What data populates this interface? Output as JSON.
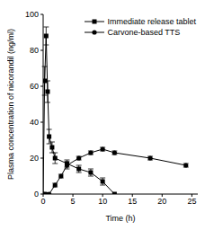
{
  "chart_data": {
    "type": "line",
    "x_label": "Time (h)",
    "y_label": "Plasma concentration of nicorandil (ng/ml)",
    "xlim": [
      0,
      26
    ],
    "xticks": [
      0,
      5,
      10,
      15,
      20,
      25
    ],
    "ylim": [
      0,
      100
    ],
    "yticks": [
      0,
      20,
      40,
      60,
      80,
      100
    ],
    "legend": "upper right",
    "grid": false,
    "series": [
      {
        "name": "Immediate release tablet",
        "color": "#000000",
        "marker": "square",
        "line_style": "solid",
        "x": [
          0,
          0.25,
          0.5,
          0.75,
          1,
          1.5,
          2,
          4,
          6,
          8,
          10,
          12
        ],
        "values": [
          0,
          63,
          88,
          57,
          32,
          26,
          20,
          17,
          14,
          12,
          7,
          0
        ],
        "errors": [
          0,
          8,
          5,
          6,
          4,
          3,
          3,
          2,
          2,
          2,
          2,
          0
        ]
      },
      {
        "name": "Carvone-based TTS",
        "color": "#000000",
        "marker": "circle",
        "line_style": "solid",
        "x": [
          0,
          0.5,
          1,
          2,
          3,
          4,
          6,
          8,
          10,
          12,
          18,
          24
        ],
        "values": [
          0,
          0,
          0,
          5,
          10,
          16,
          20,
          23,
          25,
          23,
          20,
          16
        ],
        "errors": [
          0,
          0,
          0,
          1,
          1,
          2,
          1,
          1,
          1,
          1,
          1,
          1
        ]
      }
    ]
  }
}
